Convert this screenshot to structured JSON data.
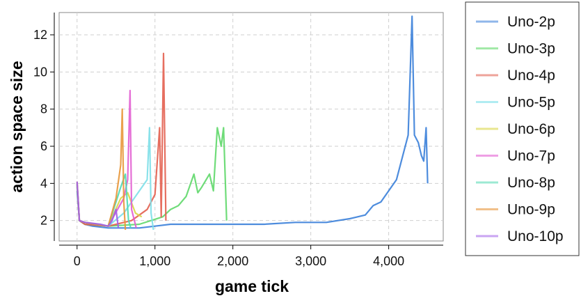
{
  "chart_data": {
    "type": "line",
    "xlabel": "game tick",
    "ylabel": "action space size",
    "xlim": [
      -230,
      4700
    ],
    "ylim": [
      0.9,
      13.2
    ],
    "xticks": [
      {
        "value": 0,
        "label": "0"
      },
      {
        "value": 1000,
        "label": "1,000"
      },
      {
        "value": 2000,
        "label": "2,000"
      },
      {
        "value": 3000,
        "label": "3,000"
      },
      {
        "value": 4000,
        "label": "4,000"
      }
    ],
    "yticks": [
      {
        "value": 2,
        "label": "2"
      },
      {
        "value": 4,
        "label": "4"
      },
      {
        "value": 6,
        "label": "6"
      },
      {
        "value": 8,
        "label": "8"
      },
      {
        "value": 10,
        "label": "10"
      },
      {
        "value": 12,
        "label": "12"
      }
    ],
    "grid": true,
    "legend_position": "right",
    "series": [
      {
        "name": "Uno-2p",
        "color": "#3a7fd9",
        "legend_color": "#8fb6ea",
        "points": [
          [
            0,
            3.6
          ],
          [
            30,
            2.0
          ],
          [
            100,
            1.8
          ],
          [
            200,
            1.7
          ],
          [
            400,
            1.6
          ],
          [
            800,
            1.6
          ],
          [
            1000,
            1.7
          ],
          [
            1200,
            1.8
          ],
          [
            1600,
            1.8
          ],
          [
            2000,
            1.8
          ],
          [
            2400,
            1.8
          ],
          [
            2800,
            1.9
          ],
          [
            3200,
            1.9
          ],
          [
            3500,
            2.1
          ],
          [
            3700,
            2.3
          ],
          [
            3800,
            2.8
          ],
          [
            3900,
            3.0
          ],
          [
            4000,
            3.6
          ],
          [
            4100,
            4.2
          ],
          [
            4200,
            5.8
          ],
          [
            4250,
            6.6
          ],
          [
            4300,
            13.0
          ],
          [
            4330,
            6.6
          ],
          [
            4380,
            6.2
          ],
          [
            4420,
            5.5
          ],
          [
            4450,
            5.2
          ],
          [
            4480,
            7.0
          ],
          [
            4500,
            4.0
          ]
        ]
      },
      {
        "name": "Uno-3p",
        "color": "#5fd86a",
        "legend_color": "#a3e9a8",
        "points": [
          [
            0,
            3.8
          ],
          [
            30,
            2.0
          ],
          [
            100,
            1.8
          ],
          [
            400,
            1.7
          ],
          [
            800,
            1.8
          ],
          [
            1100,
            2.2
          ],
          [
            1200,
            2.6
          ],
          [
            1300,
            2.8
          ],
          [
            1400,
            3.3
          ],
          [
            1500,
            4.5
          ],
          [
            1550,
            3.5
          ],
          [
            1600,
            3.8
          ],
          [
            1700,
            4.5
          ],
          [
            1750,
            3.6
          ],
          [
            1800,
            7.0
          ],
          [
            1850,
            6.0
          ],
          [
            1880,
            7.0
          ],
          [
            1920,
            2.0
          ]
        ]
      },
      {
        "name": "Uno-4p",
        "color": "#e35f4f",
        "legend_color": "#eea39a",
        "points": [
          [
            0,
            3.9
          ],
          [
            30,
            2.0
          ],
          [
            100,
            1.8
          ],
          [
            400,
            1.7
          ],
          [
            700,
            2.0
          ],
          [
            900,
            2.6
          ],
          [
            1000,
            3.4
          ],
          [
            1060,
            7.0
          ],
          [
            1080,
            2.2
          ],
          [
            1110,
            11.0
          ],
          [
            1140,
            2.0
          ]
        ]
      },
      {
        "name": "Uno-5p",
        "color": "#7ddfe8",
        "legend_color": "#b0ecf2",
        "points": [
          [
            0,
            3.9
          ],
          [
            30,
            2.0
          ],
          [
            100,
            1.9
          ],
          [
            400,
            1.7
          ],
          [
            600,
            2.4
          ],
          [
            700,
            3.0
          ],
          [
            800,
            3.6
          ],
          [
            900,
            4.2
          ],
          [
            930,
            7.0
          ],
          [
            950,
            2.4
          ],
          [
            980,
            1.5
          ]
        ]
      },
      {
        "name": "Uno-6p",
        "color": "#d8d548",
        "legend_color": "#e8e68f",
        "points": [
          [
            0,
            4.0
          ],
          [
            30,
            2.0
          ],
          [
            100,
            1.9
          ],
          [
            400,
            1.7
          ],
          [
            560,
            3.2
          ],
          [
            650,
            3.5
          ],
          [
            750,
            2.4
          ],
          [
            830,
            2.2
          ]
        ]
      },
      {
        "name": "Uno-7p",
        "color": "#e25ed1",
        "legend_color": "#ee9fe4",
        "points": [
          [
            0,
            4.0
          ],
          [
            30,
            2.0
          ],
          [
            100,
            1.9
          ],
          [
            400,
            1.7
          ],
          [
            600,
            3.2
          ],
          [
            650,
            4.2
          ],
          [
            680,
            9.0
          ],
          [
            700,
            2.6
          ],
          [
            760,
            1.6
          ]
        ]
      },
      {
        "name": "Uno-8p",
        "color": "#4fd9b3",
        "legend_color": "#9ce9d3",
        "points": [
          [
            0,
            4.0
          ],
          [
            30,
            2.0
          ],
          [
            100,
            1.9
          ],
          [
            400,
            1.7
          ],
          [
            500,
            3.0
          ],
          [
            560,
            3.8
          ],
          [
            620,
            4.5
          ],
          [
            660,
            2.0
          ],
          [
            690,
            1.6
          ]
        ]
      },
      {
        "name": "Uno-9p",
        "color": "#e8973a",
        "legend_color": "#f1c08a",
        "points": [
          [
            0,
            4.1
          ],
          [
            30,
            2.0
          ],
          [
            100,
            1.9
          ],
          [
            400,
            1.7
          ],
          [
            500,
            3.2
          ],
          [
            560,
            5.0
          ],
          [
            580,
            8.0
          ],
          [
            600,
            3.0
          ],
          [
            620,
            1.5
          ]
        ]
      },
      {
        "name": "Uno-10p",
        "color": "#a05fe8",
        "legend_color": "#c9a4f2",
        "points": [
          [
            0,
            4.1
          ],
          [
            30,
            2.0
          ],
          [
            100,
            1.9
          ],
          [
            300,
            1.8
          ],
          [
            400,
            1.7
          ],
          [
            450,
            2.0
          ],
          [
            500,
            2.6
          ],
          [
            530,
            1.6
          ]
        ]
      }
    ]
  }
}
